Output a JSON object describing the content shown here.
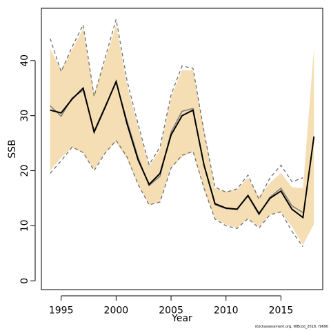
{
  "chart_data": {
    "type": "line",
    "xlabel": "Year",
    "ylabel": "SSB",
    "xlim": [
      1993.2,
      2018.8
    ],
    "ylim": [
      -1.6,
      49.5
    ],
    "x_ticks": [
      1995,
      2000,
      2005,
      2010,
      2015
    ],
    "y_ticks": [
      0,
      10,
      20,
      30,
      40
    ],
    "grid": false,
    "colors": {
      "band": "#f5deb3",
      "main_line": "#000000",
      "secondary_line": "#7f7f7f",
      "dashed_line": "#6e6e6e"
    },
    "years": [
      1994,
      1995,
      1996,
      1997,
      1998,
      1999,
      2000,
      2001,
      2002,
      2003,
      2004,
      2005,
      2006,
      2007,
      2008,
      2009,
      2010,
      2011,
      2012,
      2013,
      2014,
      2015,
      2016,
      2017,
      2018
    ],
    "series": [
      {
        "style": "band",
        "x": [
          1994,
          1995,
          1996,
          1997,
          1998,
          1999,
          2000,
          2001,
          2002,
          2003,
          2004,
          2005,
          2006,
          2007,
          2008,
          2009,
          2010,
          2011,
          2012,
          2013,
          2014,
          2015,
          2016,
          2017,
          2018
        ],
        "upper": [
          42.2,
          38.3,
          42.0,
          45.8,
          34.0,
          40.0,
          46.5,
          35.5,
          28.0,
          20.8,
          23.8,
          33.3,
          38.3,
          38.2,
          27.5,
          16.8,
          16.2,
          16.6,
          18.7,
          15.3,
          17.8,
          19.6,
          17.0,
          16.8,
          42.3
        ],
        "lower": [
          20.0,
          22.4,
          24.2,
          23.2,
          20.2,
          23.2,
          25.2,
          22.1,
          17.5,
          13.8,
          14.3,
          20.5,
          22.5,
          23.5,
          16.5,
          11.3,
          10.2,
          9.6,
          11.3,
          9.8,
          12.0,
          12.5,
          9.8,
          6.5,
          10.3
        ]
      },
      {
        "style": "dashed-upper",
        "x": [
          1994,
          1995,
          1996,
          1997,
          1998,
          1999,
          2000,
          2001,
          2002,
          2003,
          2004,
          2005,
          2006,
          2007,
          2008,
          2009,
          2010,
          2011,
          2012,
          2013,
          2014,
          2015,
          2016,
          2017
        ],
        "values": [
          44.0,
          38.0,
          42.5,
          46.5,
          33.5,
          40.5,
          47.5,
          36.3,
          28.5,
          21.1,
          24.3,
          33.8,
          39.0,
          38.6,
          27.0,
          17.0,
          16.1,
          16.7,
          19.2,
          14.8,
          18.7,
          21.0,
          18.0,
          18.7
        ]
      },
      {
        "style": "dashed-lower",
        "x": [
          1994,
          1995,
          1996,
          1997,
          1998,
          1999,
          2000,
          2001,
          2002,
          2003,
          2004,
          2005,
          2006,
          2007,
          2008,
          2009,
          2010,
          2011,
          2012,
          2013,
          2014,
          2015,
          2016,
          2017
        ],
        "values": [
          19.5,
          21.8,
          24.3,
          23.3,
          20.0,
          23.2,
          25.5,
          22.5,
          17.5,
          13.8,
          14.3,
          20.5,
          22.8,
          23.5,
          16.8,
          11.2,
          10.0,
          9.5,
          11.3,
          9.6,
          12.0,
          12.5,
          9.0,
          6.2
        ]
      },
      {
        "style": "secondary",
        "x": [
          1994,
          1995,
          1996,
          1997,
          1998,
          1999,
          2000,
          2001,
          2002,
          2003,
          2004,
          2005,
          2006,
          2007,
          2008,
          2009,
          2010,
          2011,
          2012,
          2013,
          2014,
          2015,
          2016,
          2017
        ],
        "values": [
          31.8,
          29.9,
          33.2,
          34.6,
          27.2,
          31.7,
          36.0,
          29.0,
          22.4,
          17.3,
          19.0,
          27.0,
          30.8,
          31.3,
          21.0,
          13.8,
          13.1,
          13.0,
          15.4,
          12.0,
          15.2,
          16.8,
          13.6,
          12.4
        ]
      },
      {
        "style": "main",
        "x": [
          1994,
          1995,
          1996,
          1997,
          1998,
          1999,
          2000,
          2001,
          2002,
          2003,
          2004,
          2005,
          2006,
          2007,
          2008,
          2009,
          2010,
          2011,
          2012,
          2013,
          2014,
          2015,
          2016,
          2017,
          2018
        ],
        "values": [
          31.0,
          30.5,
          33.0,
          35.0,
          27.0,
          31.5,
          36.2,
          28.5,
          22.0,
          17.5,
          19.5,
          26.5,
          30.0,
          31.0,
          21.0,
          14.0,
          13.2,
          13.0,
          15.5,
          12.2,
          15.0,
          16.3,
          13.0,
          11.5,
          26.2
        ]
      }
    ]
  },
  "footer": {
    "credit": "stockassessment.org, WBcod_2018, r9690"
  }
}
